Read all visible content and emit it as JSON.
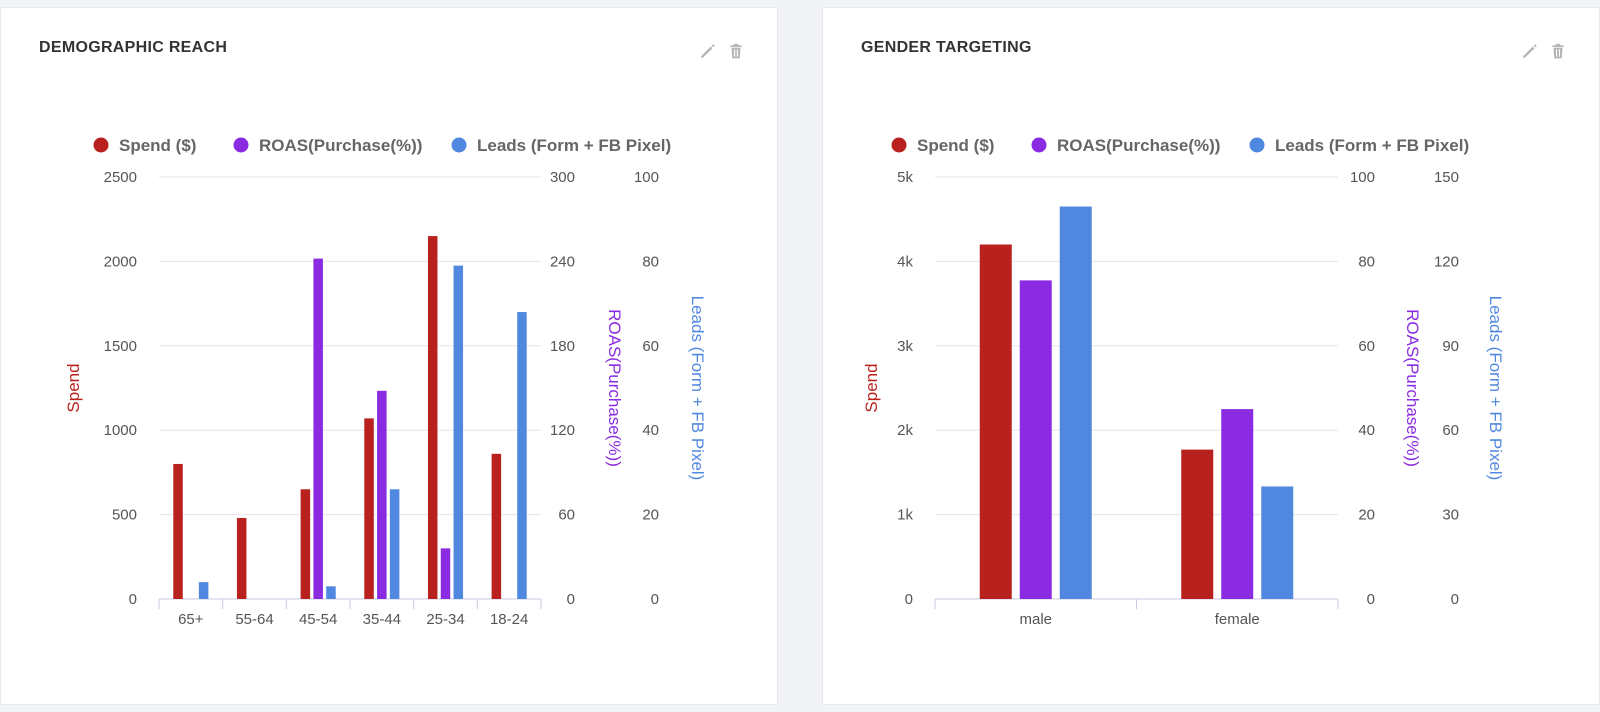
{
  "panels": [
    {
      "id": "demo",
      "title": "DEMOGRAPHIC REACH",
      "actions": {
        "edit_icon": "pencil-icon",
        "delete_icon": "trash-icon"
      },
      "chart_data": {
        "type": "bar",
        "categories": [
          "65+",
          "55-64",
          "45-54",
          "35-44",
          "25-34",
          "18-24"
        ],
        "series": [
          {
            "name": "Spend ($)",
            "color": "#b8211e",
            "axis": "spend",
            "values": [
              800,
              480,
              650,
              1070,
              2150,
              860
            ]
          },
          {
            "name": "ROAS(Purchase(%))",
            "color": "#8a2be2",
            "axis": "roas",
            "values": [
              null,
              null,
              242,
              148,
              36,
              null
            ]
          },
          {
            "name": "Leads (Form + FB Pixel)",
            "color": "#5088e0",
            "axis": "leads",
            "values": [
              4,
              null,
              3,
              26,
              79,
              68
            ]
          }
        ],
        "axes": {
          "spend": {
            "label": "Spend",
            "color": "#b8211e",
            "min": 0,
            "max": 2500,
            "ticks": [
              "0",
              "500",
              "1000",
              "1500",
              "2000",
              "2500"
            ]
          },
          "roas": {
            "label": "ROAS(Purchase(%))",
            "color": "#8a2be2",
            "min": 0,
            "max": 300,
            "ticks": [
              "0",
              "60",
              "120",
              "180",
              "240",
              "300"
            ]
          },
          "leads": {
            "label": "Leads (Form + FB Pixel)",
            "color": "#5088e0",
            "min": 0,
            "max": 100,
            "ticks": [
              "0",
              "20",
              "40",
              "60",
              "80",
              "100"
            ]
          }
        },
        "legend": "top",
        "grid": true
      }
    },
    {
      "id": "gender",
      "title": "GENDER TARGETING",
      "actions": {
        "edit_icon": "pencil-icon",
        "delete_icon": "trash-icon"
      },
      "chart_data": {
        "type": "bar",
        "categories": [
          "male",
          "female"
        ],
        "series": [
          {
            "name": "Spend ($)",
            "color": "#b8211e",
            "axis": "spend",
            "values": [
              4200,
              1770
            ]
          },
          {
            "name": "ROAS(Purchase(%))",
            "color": "#8a2be2",
            "axis": "roas",
            "values": [
              75.5,
              45
            ]
          },
          {
            "name": "Leads (Form + FB Pixel)",
            "color": "#5088e0",
            "axis": "leads",
            "values": [
              139.5,
              40
            ]
          }
        ],
        "axes": {
          "spend": {
            "label": "Spend",
            "color": "#b8211e",
            "min": 0,
            "max": 5000,
            "ticks": [
              "0",
              "1k",
              "2k",
              "3k",
              "4k",
              "5k"
            ]
          },
          "roas": {
            "label": "ROAS(Purchase(%))",
            "color": "#8a2be2",
            "min": 0,
            "max": 100,
            "ticks": [
              "0",
              "20",
              "40",
              "60",
              "80",
              "100"
            ]
          },
          "leads": {
            "label": "Leads (Form + FB Pixel)",
            "color": "#5088e0",
            "min": 0,
            "max": 150,
            "ticks": [
              "0",
              "30",
              "60",
              "90",
              "120",
              "150"
            ]
          }
        },
        "legend": "top",
        "grid": true
      }
    }
  ]
}
